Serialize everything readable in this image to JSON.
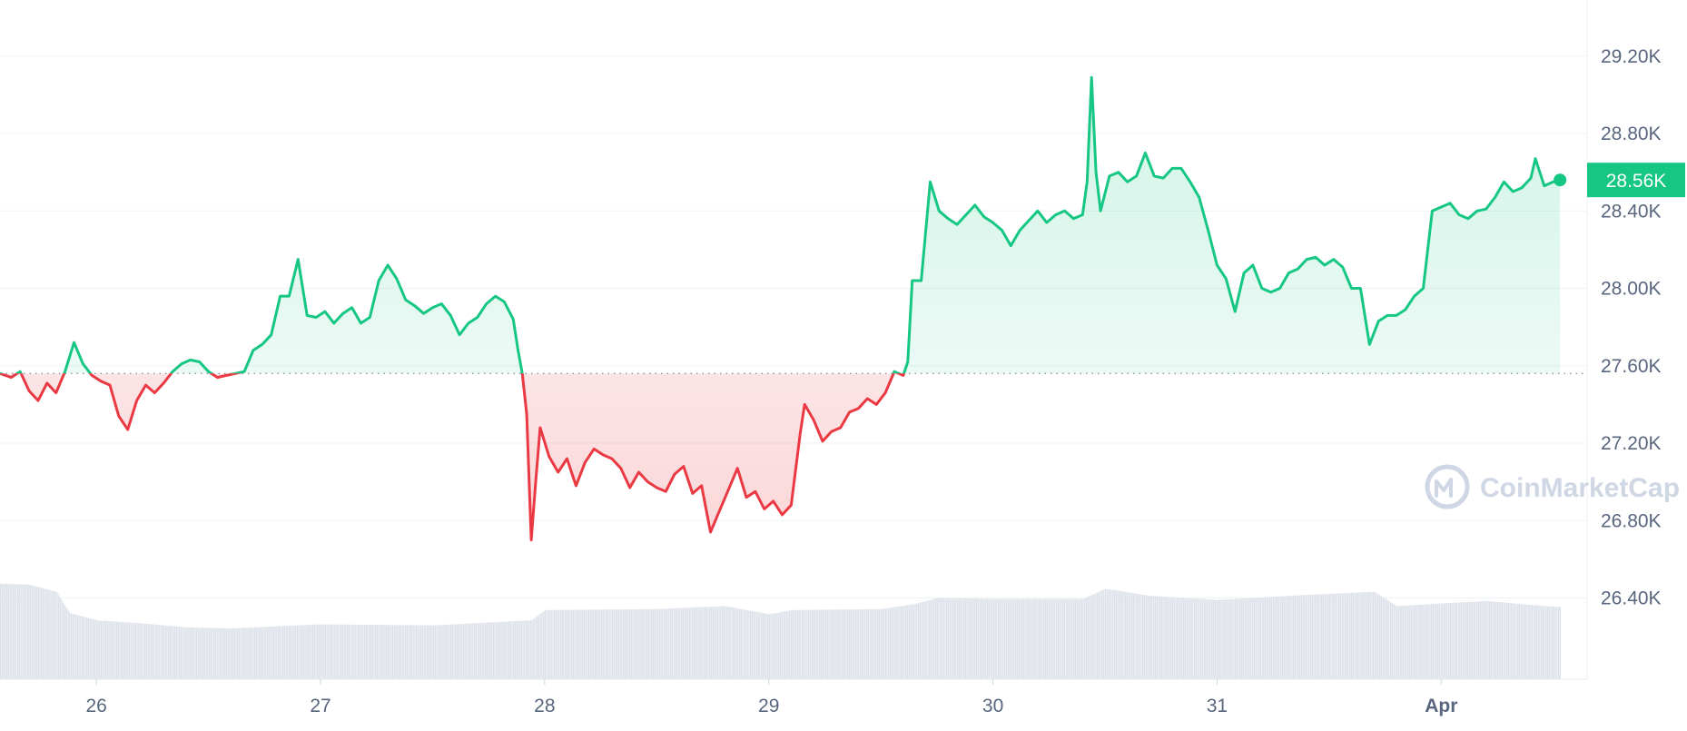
{
  "chart_data": {
    "type": "area",
    "baseline": 27.56,
    "last_price": 28.56,
    "last_price_label": "28.56K",
    "y_ticks": [
      {
        "value": 26.4,
        "label": "26.40K"
      },
      {
        "value": 26.8,
        "label": "26.80K"
      },
      {
        "value": 27.2,
        "label": "27.20K"
      },
      {
        "value": 27.6,
        "label": "27.60K"
      },
      {
        "value": 28.0,
        "label": "28.00K"
      },
      {
        "value": 28.4,
        "label": "28.40K"
      },
      {
        "value": 28.8,
        "label": "28.80K"
      },
      {
        "value": 29.2,
        "label": "29.20K"
      }
    ],
    "ylim": [
      25.98,
      29.49
    ],
    "xlim": [
      25.57,
      32.57
    ],
    "x_ticks": [
      {
        "value": 26,
        "label": "26"
      },
      {
        "value": 27,
        "label": "27"
      },
      {
        "value": 28,
        "label": "28"
      },
      {
        "value": 29,
        "label": "29"
      },
      {
        "value": 30,
        "label": "30"
      },
      {
        "value": 31,
        "label": "31"
      },
      {
        "value": 32,
        "label": "Apr"
      }
    ],
    "price_points": [
      [
        25.57,
        27.56
      ],
      [
        25.62,
        27.54
      ],
      [
        25.66,
        27.57
      ],
      [
        25.7,
        27.47
      ],
      [
        25.74,
        27.42
      ],
      [
        25.78,
        27.51
      ],
      [
        25.82,
        27.46
      ],
      [
        25.86,
        27.57
      ],
      [
        25.9,
        27.72
      ],
      [
        25.94,
        27.61
      ],
      [
        25.98,
        27.55
      ],
      [
        26.02,
        27.52
      ],
      [
        26.06,
        27.5
      ],
      [
        26.1,
        27.34
      ],
      [
        26.14,
        27.27
      ],
      [
        26.18,
        27.42
      ],
      [
        26.22,
        27.5
      ],
      [
        26.26,
        27.46
      ],
      [
        26.3,
        27.51
      ],
      [
        26.34,
        27.57
      ],
      [
        26.38,
        27.61
      ],
      [
        26.42,
        27.63
      ],
      [
        26.46,
        27.62
      ],
      [
        26.5,
        27.57
      ],
      [
        26.54,
        27.54
      ],
      [
        26.58,
        27.55
      ],
      [
        26.62,
        27.56
      ],
      [
        26.66,
        27.57
      ],
      [
        26.7,
        27.68
      ],
      [
        26.74,
        27.71
      ],
      [
        26.78,
        27.76
      ],
      [
        26.82,
        27.96
      ],
      [
        26.86,
        27.96
      ],
      [
        26.9,
        28.15
      ],
      [
        26.94,
        27.86
      ],
      [
        26.98,
        27.85
      ],
      [
        27.02,
        27.88
      ],
      [
        27.06,
        27.82
      ],
      [
        27.1,
        27.87
      ],
      [
        27.14,
        27.9
      ],
      [
        27.18,
        27.82
      ],
      [
        27.22,
        27.85
      ],
      [
        27.26,
        28.04
      ],
      [
        27.3,
        28.12
      ],
      [
        27.34,
        28.05
      ],
      [
        27.38,
        27.94
      ],
      [
        27.42,
        27.91
      ],
      [
        27.46,
        27.87
      ],
      [
        27.5,
        27.9
      ],
      [
        27.54,
        27.92
      ],
      [
        27.58,
        27.86
      ],
      [
        27.62,
        27.76
      ],
      [
        27.66,
        27.82
      ],
      [
        27.7,
        27.85
      ],
      [
        27.74,
        27.92
      ],
      [
        27.78,
        27.96
      ],
      [
        27.82,
        27.93
      ],
      [
        27.86,
        27.84
      ],
      [
        27.88,
        27.69
      ],
      [
        27.9,
        27.56
      ],
      [
        27.92,
        27.35
      ],
      [
        27.94,
        26.7
      ],
      [
        27.96,
        27.0
      ],
      [
        27.98,
        27.28
      ],
      [
        28.02,
        27.13
      ],
      [
        28.06,
        27.05
      ],
      [
        28.1,
        27.12
      ],
      [
        28.14,
        26.98
      ],
      [
        28.18,
        27.1
      ],
      [
        28.22,
        27.17
      ],
      [
        28.26,
        27.14
      ],
      [
        28.3,
        27.12
      ],
      [
        28.34,
        27.07
      ],
      [
        28.38,
        26.97
      ],
      [
        28.42,
        27.05
      ],
      [
        28.46,
        27.0
      ],
      [
        28.5,
        26.97
      ],
      [
        28.54,
        26.95
      ],
      [
        28.58,
        27.04
      ],
      [
        28.62,
        27.08
      ],
      [
        28.66,
        26.94
      ],
      [
        28.7,
        26.98
      ],
      [
        28.74,
        26.74
      ],
      [
        28.78,
        26.85
      ],
      [
        28.82,
        26.96
      ],
      [
        28.86,
        27.07
      ],
      [
        28.9,
        26.92
      ],
      [
        28.94,
        26.95
      ],
      [
        28.98,
        26.86
      ],
      [
        29.02,
        26.9
      ],
      [
        29.06,
        26.83
      ],
      [
        29.1,
        26.88
      ],
      [
        29.14,
        27.25
      ],
      [
        29.16,
        27.4
      ],
      [
        29.2,
        27.32
      ],
      [
        29.24,
        27.21
      ],
      [
        29.28,
        27.26
      ],
      [
        29.32,
        27.28
      ],
      [
        29.36,
        27.36
      ],
      [
        29.4,
        27.38
      ],
      [
        29.44,
        27.43
      ],
      [
        29.48,
        27.4
      ],
      [
        29.52,
        27.46
      ],
      [
        29.56,
        27.57
      ],
      [
        29.6,
        27.55
      ],
      [
        29.62,
        27.62
      ],
      [
        29.64,
        28.04
      ],
      [
        29.68,
        28.04
      ],
      [
        29.72,
        28.55
      ],
      [
        29.76,
        28.4
      ],
      [
        29.8,
        28.36
      ],
      [
        29.84,
        28.33
      ],
      [
        29.88,
        28.38
      ],
      [
        29.92,
        28.43
      ],
      [
        29.96,
        28.37
      ],
      [
        30.0,
        28.34
      ],
      [
        30.04,
        28.3
      ],
      [
        30.08,
        28.22
      ],
      [
        30.12,
        28.3
      ],
      [
        30.16,
        28.35
      ],
      [
        30.2,
        28.4
      ],
      [
        30.24,
        28.34
      ],
      [
        30.28,
        28.38
      ],
      [
        30.32,
        28.4
      ],
      [
        30.36,
        28.36
      ],
      [
        30.4,
        28.38
      ],
      [
        30.42,
        28.55
      ],
      [
        30.44,
        29.09
      ],
      [
        30.46,
        28.6
      ],
      [
        30.48,
        28.4
      ],
      [
        30.52,
        28.58
      ],
      [
        30.56,
        28.6
      ],
      [
        30.6,
        28.55
      ],
      [
        30.64,
        28.58
      ],
      [
        30.68,
        28.7
      ],
      [
        30.72,
        28.58
      ],
      [
        30.76,
        28.57
      ],
      [
        30.8,
        28.62
      ],
      [
        30.84,
        28.62
      ],
      [
        30.88,
        28.55
      ],
      [
        30.92,
        28.47
      ],
      [
        30.96,
        28.3
      ],
      [
        31.0,
        28.12
      ],
      [
        31.04,
        28.05
      ],
      [
        31.08,
        27.88
      ],
      [
        31.12,
        28.08
      ],
      [
        31.16,
        28.12
      ],
      [
        31.2,
        28.0
      ],
      [
        31.24,
        27.98
      ],
      [
        31.28,
        28.0
      ],
      [
        31.32,
        28.08
      ],
      [
        31.36,
        28.1
      ],
      [
        31.4,
        28.15
      ],
      [
        31.44,
        28.16
      ],
      [
        31.48,
        28.12
      ],
      [
        31.52,
        28.15
      ],
      [
        31.56,
        28.11
      ],
      [
        31.6,
        28.0
      ],
      [
        31.64,
        28.0
      ],
      [
        31.68,
        27.71
      ],
      [
        31.72,
        27.83
      ],
      [
        31.76,
        27.86
      ],
      [
        31.8,
        27.86
      ],
      [
        31.84,
        27.89
      ],
      [
        31.88,
        27.96
      ],
      [
        31.92,
        28.0
      ],
      [
        31.96,
        28.4
      ],
      [
        32.0,
        28.42
      ],
      [
        32.04,
        28.44
      ],
      [
        32.08,
        28.38
      ],
      [
        32.12,
        28.36
      ],
      [
        32.16,
        28.4
      ],
      [
        32.2,
        28.41
      ],
      [
        32.24,
        28.47
      ],
      [
        32.28,
        28.55
      ],
      [
        32.32,
        28.5
      ],
      [
        32.36,
        28.52
      ],
      [
        32.4,
        28.57
      ],
      [
        32.42,
        28.67
      ],
      [
        32.46,
        28.53
      ],
      [
        32.5,
        28.55
      ],
      [
        32.53,
        28.56
      ]
    ],
    "volume_levels": [
      [
        25.57,
        0.94
      ],
      [
        25.7,
        0.93
      ],
      [
        25.82,
        0.86
      ],
      [
        25.88,
        0.65
      ],
      [
        26.0,
        0.58
      ],
      [
        26.2,
        0.55
      ],
      [
        26.4,
        0.51
      ],
      [
        26.6,
        0.5
      ],
      [
        27.0,
        0.54
      ],
      [
        27.5,
        0.53
      ],
      [
        27.94,
        0.58
      ],
      [
        28.0,
        0.68
      ],
      [
        28.5,
        0.69
      ],
      [
        28.8,
        0.72
      ],
      [
        29.0,
        0.64
      ],
      [
        29.1,
        0.68
      ],
      [
        29.5,
        0.69
      ],
      [
        29.65,
        0.74
      ],
      [
        29.75,
        0.8
      ],
      [
        30.0,
        0.79
      ],
      [
        30.4,
        0.79
      ],
      [
        30.5,
        0.89
      ],
      [
        30.7,
        0.82
      ],
      [
        31.0,
        0.78
      ],
      [
        31.4,
        0.83
      ],
      [
        31.7,
        0.86
      ],
      [
        31.8,
        0.72
      ],
      [
        32.2,
        0.77
      ],
      [
        32.4,
        0.73
      ],
      [
        32.53,
        0.71
      ]
    ],
    "colors": {
      "up": "#16c784",
      "down": "#ea3943",
      "grid": "#eff2f5",
      "axis_text": "#58667e",
      "volume_bar": "#dde2ea",
      "watermark": "#cfd6e4"
    },
    "watermark": "CoinMarketCap"
  }
}
